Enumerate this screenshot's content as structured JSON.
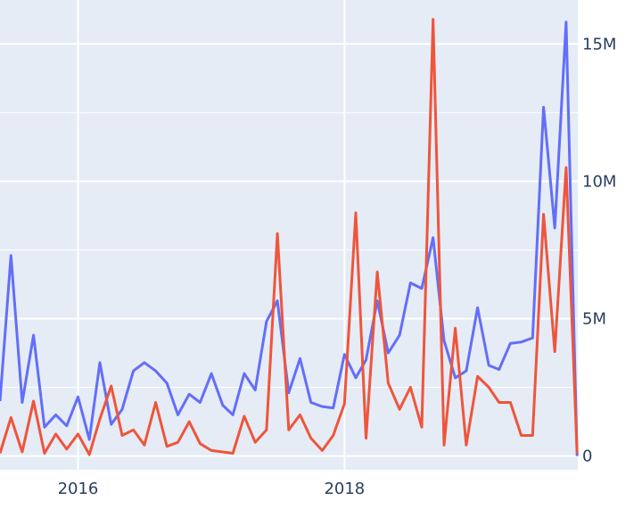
{
  "chart_data": {
    "type": "line",
    "title": "",
    "xlabel": "",
    "ylabel": "",
    "y_axis_side": "right",
    "grid": true,
    "legend": "none",
    "xlim": [
      "2015-06-01",
      "2019-10-03"
    ],
    "ylim": [
      -500000,
      16600000
    ],
    "x_ticks": [
      {
        "value": "2016-01-01",
        "label": "2016"
      },
      {
        "value": "2018-01-01",
        "label": "2018"
      }
    ],
    "y_ticks": [
      {
        "value": 0,
        "label": "0"
      },
      {
        "value": 5000000,
        "label": "5M"
      },
      {
        "value": 10000000,
        "label": "10M"
      },
      {
        "value": 15000000,
        "label": "15M"
      }
    ],
    "x": [
      "2015-06",
      "2015-07",
      "2015-08",
      "2015-09",
      "2015-10",
      "2015-11",
      "2015-12",
      "2016-01",
      "2016-02",
      "2016-03",
      "2016-04",
      "2016-05",
      "2016-06",
      "2016-07",
      "2016-08",
      "2016-09",
      "2016-10",
      "2016-11",
      "2016-12",
      "2017-01",
      "2017-02",
      "2017-03",
      "2017-04",
      "2017-05",
      "2017-06",
      "2017-07",
      "2017-08",
      "2017-09",
      "2017-10",
      "2017-11",
      "2017-12",
      "2018-01",
      "2018-02",
      "2018-03",
      "2018-04",
      "2018-05",
      "2018-06",
      "2018-07",
      "2018-08",
      "2018-09",
      "2018-10",
      "2018-11",
      "2018-12",
      "2019-01",
      "2019-02",
      "2019-03",
      "2019-04",
      "2019-05",
      "2019-06",
      "2019-07",
      "2019-08",
      "2019-09",
      "2019-10"
    ],
    "series": [
      {
        "color": "#636efa",
        "values": [
          2000000,
          7300000,
          1950000,
          4400000,
          1050000,
          1500000,
          1100000,
          2150000,
          600000,
          3400000,
          1150000,
          1700000,
          3100000,
          3400000,
          3100000,
          2650000,
          1500000,
          2250000,
          1950000,
          3000000,
          1850000,
          1500000,
          3000000,
          2400000,
          4900000,
          5650000,
          2300000,
          3550000,
          1950000,
          1800000,
          1750000,
          3700000,
          2850000,
          3500000,
          5650000,
          3750000,
          4400000,
          6300000,
          6100000,
          7950000,
          4200000,
          2850000,
          3100000,
          5400000,
          3300000,
          3150000,
          4100000,
          4150000,
          4300000,
          12700000,
          8300000,
          15800000,
          0
        ]
      },
      {
        "color": "#ef553b",
        "values": [
          100000,
          1400000,
          150000,
          2000000,
          100000,
          800000,
          250000,
          800000,
          50000,
          1350000,
          2550000,
          750000,
          950000,
          400000,
          1950000,
          350000,
          500000,
          1250000,
          450000,
          200000,
          150000,
          100000,
          1450000,
          500000,
          950000,
          8100000,
          950000,
          1500000,
          650000,
          200000,
          750000,
          1900000,
          8850000,
          650000,
          6700000,
          2650000,
          1700000,
          2500000,
          1050000,
          15900000,
          400000,
          4650000,
          400000,
          2900000,
          2500000,
          1950000,
          1950000,
          750000,
          750000,
          8800000,
          3800000,
          10500000,
          100000
        ]
      }
    ]
  }
}
